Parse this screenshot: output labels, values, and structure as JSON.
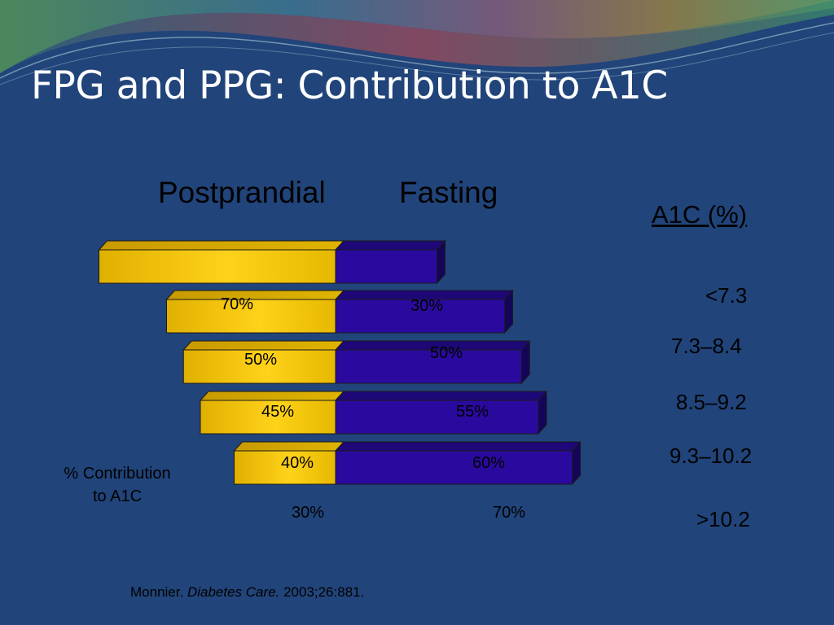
{
  "slide": {
    "title": "FPG and PPG: Contribution to A1C",
    "column_header_postprandial": "Postprandial",
    "column_header_fasting": "Fasting",
    "a1c_header": "A1C (%)",
    "contribution_label_line1": "% Contribution",
    "contribution_label_line2": "to A1C",
    "citation": {
      "author": "Monnier.",
      "journal": "Diabetes Care.",
      "ref": "2003;26:881."
    }
  },
  "colors": {
    "background": "#21447a",
    "postprandial": "#f2c200",
    "fasting": "#2a0a9e"
  },
  "chart_data": {
    "type": "bar",
    "orientation": "horizontal",
    "stacked": true,
    "categories": [
      "<7.3",
      "7.3–8.4",
      "8.5–9.2",
      "9.3–10.2",
      ">10.2"
    ],
    "series": [
      {
        "name": "Postprandial",
        "values": [
          70,
          50,
          45,
          40,
          30
        ],
        "labels": [
          "70%",
          "50%",
          "45%",
          "40%",
          "30%"
        ]
      },
      {
        "name": "Fasting",
        "values": [
          30,
          50,
          55,
          60,
          70
        ],
        "labels": [
          "30%",
          "50%",
          "55%",
          "60%",
          "70%"
        ]
      }
    ],
    "ylabel": "A1C (%)",
    "xlabel": "% Contribution to A1C"
  }
}
